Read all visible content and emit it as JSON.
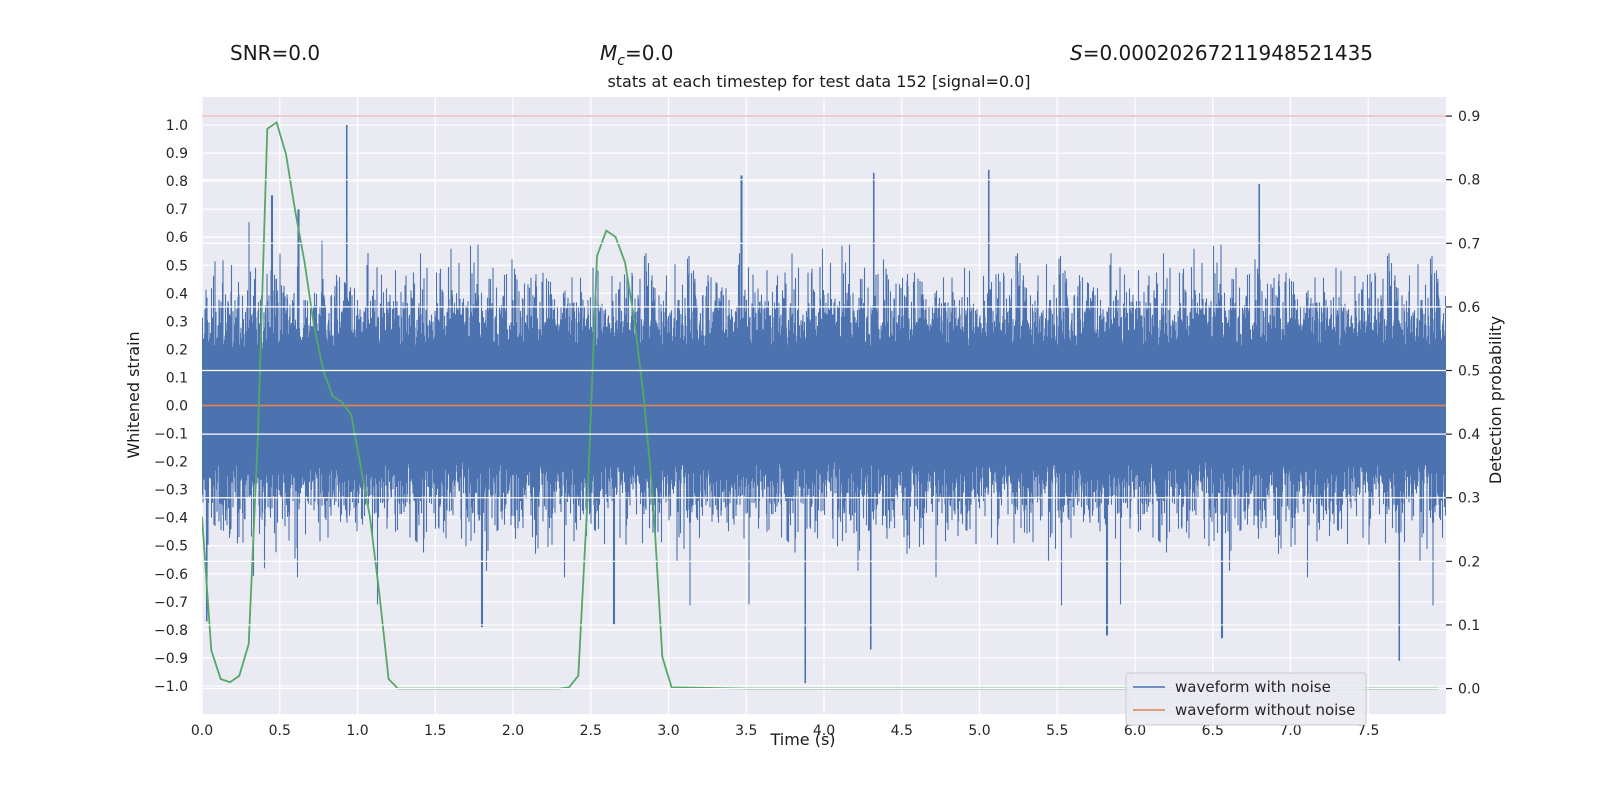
{
  "header": {
    "snr_label": "SNR=0.0",
    "mc_symbol": "M",
    "mc_sub": "c",
    "mc_value": "=0.0",
    "s_symbol": "S",
    "s_value": "=0.00020267211948521435"
  },
  "chart_data": {
    "type": "line",
    "title": "stats at each timestep for test data 152 [signal=0.0]",
    "xlabel": "Time (s)",
    "ylabel": "Whitened strain",
    "y2label": "Detection probability",
    "xlim": [
      0.0,
      8.0
    ],
    "ylim": [
      -1.1,
      1.1
    ],
    "y2lim": [
      -0.04,
      0.93
    ],
    "xticks": [
      0.0,
      0.5,
      1.0,
      1.5,
      2.0,
      2.5,
      3.0,
      3.5,
      4.0,
      4.5,
      5.0,
      5.5,
      6.0,
      6.5,
      7.0,
      7.5
    ],
    "xtick_labels": [
      "0.0",
      "0.5",
      "1.0",
      "1.5",
      "2.0",
      "2.5",
      "3.0",
      "3.5",
      "4.0",
      "4.5",
      "5.0",
      "5.5",
      "6.0",
      "6.5",
      "7.0",
      "7.5"
    ],
    "yticks": [
      1.0,
      0.9,
      0.8,
      0.7,
      0.6,
      0.5,
      0.4,
      0.3,
      0.2,
      0.1,
      0.0,
      -0.1,
      -0.2,
      -0.3,
      -0.4,
      -0.5,
      -0.6,
      -0.7,
      -0.8,
      -0.9,
      -1.0
    ],
    "ytick_labels": [
      "1.0",
      "0.9",
      "0.8",
      "0.7",
      "0.6",
      "0.5",
      "0.4",
      "0.3",
      "0.2",
      "0.1",
      "0.0",
      "−0.1",
      "−0.2",
      "−0.3",
      "−0.4",
      "−0.5",
      "−0.6",
      "−0.7",
      "−0.8",
      "−0.9",
      "−1.0"
    ],
    "y2ticks": [
      0.0,
      0.1,
      0.2,
      0.3,
      0.4,
      0.5,
      0.6,
      0.7,
      0.8,
      0.9
    ],
    "y2tick_labels": [
      "0.0",
      "0.1",
      "0.2",
      "0.3",
      "0.4",
      "0.5",
      "0.6",
      "0.7",
      "0.8",
      "0.9"
    ],
    "threshold": {
      "y2": 0.9,
      "color": "#c44e52"
    },
    "series": [
      {
        "name": "waveform with noise",
        "color": "#4c72b0",
        "axis": "left",
        "kind": "dense_noise",
        "n_samples": 16384,
        "amplitude_std": 0.2,
        "peaks": [
          {
            "t": 0.93,
            "v": 1.0
          },
          {
            "t": 0.45,
            "v": 0.75
          },
          {
            "t": 0.62,
            "v": 0.7
          },
          {
            "t": 4.32,
            "v": 0.83
          },
          {
            "t": 5.06,
            "v": 0.84
          },
          {
            "t": 3.47,
            "v": 0.82
          },
          {
            "t": 6.8,
            "v": 0.79
          },
          {
            "t": 3.88,
            "v": -0.99
          },
          {
            "t": 6.56,
            "v": -0.83
          },
          {
            "t": 7.7,
            "v": -0.91
          },
          {
            "t": 0.03,
            "v": -0.77
          },
          {
            "t": 4.3,
            "v": -0.87
          },
          {
            "t": 1.8,
            "v": -0.79
          },
          {
            "t": 5.82,
            "v": -0.82
          },
          {
            "t": 2.65,
            "v": -0.78
          }
        ]
      },
      {
        "name": "waveform without noise",
        "color": "#dd8452",
        "axis": "left",
        "x": [
          0.0,
          8.0
        ],
        "y": [
          0.0,
          0.0
        ]
      },
      {
        "name": "detection probability",
        "color": "#55a868",
        "axis": "right",
        "x": [
          0.0,
          0.06,
          0.12,
          0.18,
          0.24,
          0.3,
          0.36,
          0.42,
          0.48,
          0.54,
          0.6,
          0.66,
          0.72,
          0.78,
          0.84,
          0.9,
          0.96,
          1.02,
          1.08,
          1.14,
          1.2,
          1.26,
          1.5,
          2.0,
          2.3,
          2.36,
          2.42,
          2.48,
          2.54,
          2.6,
          2.66,
          2.72,
          2.78,
          2.84,
          2.9,
          2.96,
          3.02,
          3.5,
          4.0,
          5.0,
          6.0,
          7.0,
          7.95
        ],
        "y": [
          0.27,
          0.06,
          0.015,
          0.01,
          0.02,
          0.07,
          0.4,
          0.88,
          0.89,
          0.84,
          0.75,
          0.67,
          0.57,
          0.5,
          0.46,
          0.45,
          0.43,
          0.35,
          0.27,
          0.15,
          0.015,
          0.0,
          0.0,
          0.0,
          0.0,
          0.002,
          0.02,
          0.3,
          0.68,
          0.72,
          0.71,
          0.67,
          0.58,
          0.46,
          0.3,
          0.05,
          0.002,
          0.0,
          0.0,
          0.0,
          0.0,
          0.0,
          0.0
        ]
      }
    ],
    "legend": {
      "position": "lower-right",
      "entries": [
        {
          "label": "waveform with noise",
          "color": "#4c72b0"
        },
        {
          "label": "waveform without noise",
          "color": "#dd8452"
        }
      ]
    },
    "style": {
      "background": "#eaeaf2",
      "grid": true,
      "grid_color": "#ffffff"
    }
  }
}
